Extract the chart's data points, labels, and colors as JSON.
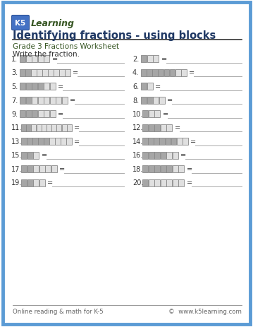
{
  "title": "Identifying fractions - using blocks",
  "subtitle": "Grade 3 Fractions Worksheet",
  "instruction": "Write the fraction.",
  "footer_left": "Online reading & math for K-5",
  "footer_right": "©  www.k5learning.com",
  "background": "#ffffff",
  "border_color": "#5b9bd5",
  "title_color": "#1f3864",
  "subtitle_color": "#375623",
  "text_color": "#333333",
  "shaded_color": "#a6a6a6",
  "unshaded_color": "#e0e0e0",
  "logo_bg": "#4472c4",
  "logo_text_color": "#92d050",
  "problems": [
    {
      "total": 5,
      "shaded": 1
    },
    {
      "total": 3,
      "shaded": 1
    },
    {
      "total": 9,
      "shaded": 2
    },
    {
      "total": 8,
      "shaded": 6
    },
    {
      "total": 6,
      "shaded": 4
    },
    {
      "total": 2,
      "shaded": 1
    },
    {
      "total": 8,
      "shaded": 2
    },
    {
      "total": 4,
      "shaded": 2
    },
    {
      "total": 6,
      "shaded": 3
    },
    {
      "total": 3,
      "shaded": 1
    },
    {
      "total": 10,
      "shaded": 2
    },
    {
      "total": 5,
      "shaded": 3
    },
    {
      "total": 9,
      "shaded": 5
    },
    {
      "total": 8,
      "shaded": 6
    },
    {
      "total": 3,
      "shaded": 2
    },
    {
      "total": 6,
      "shaded": 4
    },
    {
      "total": 6,
      "shaded": 2
    },
    {
      "total": 7,
      "shaded": 5
    },
    {
      "total": 4,
      "shaded": 2
    },
    {
      "total": 7,
      "shaded": 1
    }
  ]
}
